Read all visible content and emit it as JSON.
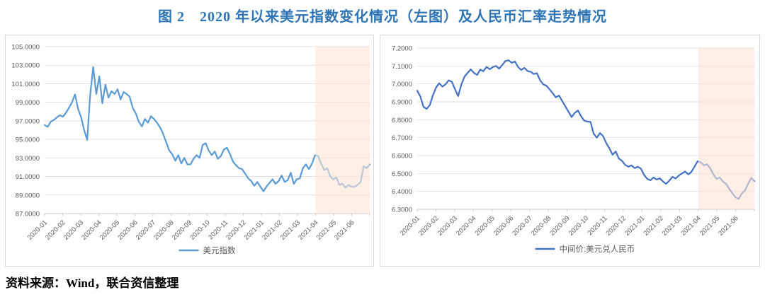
{
  "figure": {
    "title": "图 2　2020 年以来美元指数变化情况（左图）及人民币汇率走势情况",
    "source": "资料来源：Wind，联合资信整理"
  },
  "colors": {
    "title": "#2e75b6",
    "grid": "#e2e2e2",
    "axis": "#c9c9c9",
    "axis_label": "#595959",
    "panel_border": "#d9d9d9",
    "highlight": "#fbe5d6",
    "left_line": "#5b9bd5",
    "right_line": "#4472c4"
  },
  "chart_data": [
    {
      "name": "usd-index",
      "type": "line",
      "legend": "美元指数",
      "legend_position": "bottom",
      "line_color": "#5b9bd5",
      "grid": true,
      "ylim": [
        87,
        105
      ],
      "y_step": 2,
      "y_tick_labels": [
        "105.0000",
        "103.0000",
        "101.0000",
        "99.0000",
        "97.0000",
        "95.0000",
        "93.0000",
        "91.0000",
        "89.0000",
        "87.0000"
      ],
      "x_labels": [
        "2020-01",
        "2020-02",
        "2020-03",
        "2020-04",
        "2020-05",
        "2020-06",
        "2020-07",
        "2020-08",
        "2020-09",
        "2020-10",
        "2020-11",
        "2020-12",
        "2021-01",
        "2021-02",
        "2021-03",
        "2021-04",
        "2021-05",
        "2021-06"
      ],
      "shaded_region": {
        "from_label": "2021-04",
        "to": "end",
        "color": "#fbe5d6"
      },
      "values": [
        96.55,
        96.35,
        96.9,
        97.1,
        97.35,
        97.6,
        97.45,
        97.85,
        98.4,
        99.0,
        99.85,
        98.3,
        97.4,
        96.0,
        94.95,
        99.8,
        102.8,
        99.9,
        101.8,
        98.9,
        100.9,
        99.5,
        100.2,
        99.9,
        100.4,
        99.3,
        100.1,
        99.9,
        99.6,
        98.4,
        97.8,
        96.9,
        96.4,
        97.2,
        96.8,
        97.5,
        97.2,
        96.8,
        96.3,
        95.6,
        94.7,
        93.8,
        93.4,
        92.7,
        93.3,
        92.4,
        93.0,
        92.3,
        92.3,
        92.9,
        93.3,
        93.0,
        94.4,
        94.6,
        93.8,
        93.3,
        93.7,
        92.9,
        93.2,
        93.9,
        94.1,
        93.4,
        92.6,
        92.2,
        91.9,
        91.8,
        91.3,
        90.8,
        90.5,
        90.0,
        90.4,
        89.9,
        89.4,
        89.9,
        90.3,
        90.7,
        90.2,
        90.5,
        91.1,
        90.4,
        90.6,
        91.4,
        90.2,
        90.7,
        90.8,
        91.9,
        92.3,
        91.8,
        92.4,
        93.3,
        93.2,
        92.4,
        91.7,
        91.9,
        91.0,
        90.7,
        90.9,
        90.1,
        90.2,
        89.8,
        90.1,
        89.9,
        89.9,
        90.1,
        90.4,
        92.1,
        91.9,
        92.3
      ]
    },
    {
      "name": "usd-cny-central-parity",
      "type": "line",
      "legend": "中间价:美元兑人民币",
      "legend_position": "bottom",
      "line_color": "#4472c4",
      "grid": true,
      "ylim": [
        6.3,
        7.2
      ],
      "y_step": 0.1,
      "y_tick_labels": [
        "7.2000",
        "7.1000",
        "7.0000",
        "6.9000",
        "6.8000",
        "6.7000",
        "6.6000",
        "6.5000",
        "6.4000",
        "6.3000"
      ],
      "x_labels": [
        "2020-01",
        "2020-02",
        "2020-03",
        "2020-04",
        "2020-05",
        "2020-06",
        "2020-07",
        "2020-08",
        "2020-09",
        "2020-10",
        "2020-11",
        "2020-12",
        "2021-01",
        "2021-02",
        "2021-03",
        "2021-04",
        "2021-05",
        "2021-06"
      ],
      "shaded_region": {
        "from_label": "2021-04",
        "to": "end",
        "color": "#fbe5d6"
      },
      "values": [
        6.962,
        6.93,
        6.872,
        6.861,
        6.882,
        6.937,
        6.98,
        7.004,
        6.985,
        6.998,
        7.02,
        7.012,
        6.97,
        6.932,
        6.996,
        7.04,
        7.062,
        7.081,
        7.062,
        7.05,
        7.08,
        7.071,
        7.095,
        7.082,
        7.094,
        7.1,
        7.085,
        7.106,
        7.128,
        7.132,
        7.118,
        7.125,
        7.095,
        7.078,
        7.09,
        7.072,
        7.068,
        7.055,
        7.06,
        7.02,
        6.998,
        6.99,
        6.97,
        6.948,
        6.925,
        6.935,
        6.905,
        6.875,
        6.845,
        6.815,
        6.838,
        6.852,
        6.82,
        6.795,
        6.79,
        6.788,
        6.722,
        6.7,
        6.726,
        6.708,
        6.67,
        6.64,
        6.605,
        6.623,
        6.583,
        6.57,
        6.548,
        6.538,
        6.545,
        6.53,
        6.538,
        6.527,
        6.492,
        6.47,
        6.462,
        6.478,
        6.466,
        6.473,
        6.455,
        6.442,
        6.46,
        6.481,
        6.472,
        6.488,
        6.5,
        6.511,
        6.495,
        6.509,
        6.538,
        6.568,
        6.562,
        6.545,
        6.552,
        6.528,
        6.495,
        6.47,
        6.478,
        6.455,
        6.442,
        6.415,
        6.39,
        6.368,
        6.358,
        6.388,
        6.405,
        6.442,
        6.475,
        6.457
      ]
    }
  ]
}
